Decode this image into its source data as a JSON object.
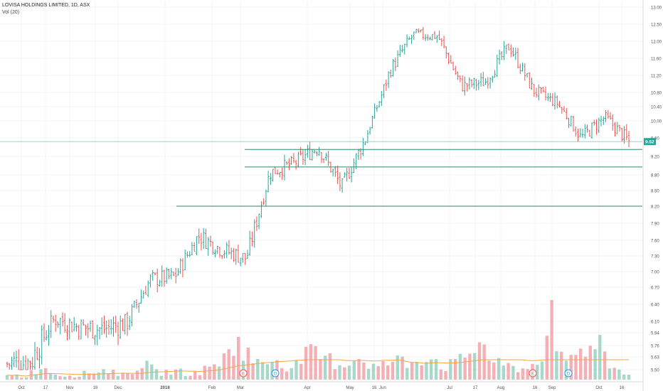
{
  "header": {
    "symbol_line": "LOVISA HOLDINGS LIMITED, 1D, ASX",
    "indicator": "Vol (20)"
  },
  "chart_data": {
    "type": "ohlc",
    "symbol": "LOVISA HOLDINGS LIMITED",
    "interval": "1D",
    "exchange": "ASX",
    "last_price": 9.52,
    "last_price_label": "9.52",
    "y_axis": {
      "ticks": [
        "13.00",
        "12.50",
        "12.00",
        "11.60",
        "11.20",
        "10.80",
        "10.40",
        "10.00",
        "9.60",
        "9.20",
        "8.80",
        "8.50",
        "8.20",
        "7.90",
        "7.60",
        "7.30",
        "7.00",
        "6.70",
        "6.40",
        "6.10",
        "5.94",
        "5.76",
        "5.63",
        "5.50"
      ],
      "ylim": [
        5.3,
        13.1
      ]
    },
    "x_axis": {
      "ticks": [
        "Oct",
        "17",
        "Nov",
        "16",
        "Dec",
        "2018",
        "Feb",
        "Mar",
        "Apr",
        "May",
        "16",
        "Jun",
        "Jul",
        "17",
        "Aug",
        "16",
        "Sep",
        "Oct",
        "16"
      ]
    },
    "horizontal_lines": [
      {
        "price": 9.35,
        "from": "Mar",
        "to": "axis"
      },
      {
        "price": 8.97,
        "from": "Mar",
        "to": "axis"
      },
      {
        "price": 8.2,
        "from": "Jan",
        "to": "axis"
      },
      {
        "price": 9.52,
        "from": "start",
        "to": "axis"
      }
    ],
    "events": [
      {
        "label": "E",
        "date": "Feb"
      },
      {
        "label": "D",
        "date": "Mar"
      },
      {
        "label": "E",
        "date": "Aug 16"
      },
      {
        "label": "D",
        "date": "Sep"
      }
    ],
    "price_series": [
      {
        "date": "Sep",
        "c": 5.56
      },
      {
        "date": "Oct",
        "c": 5.58
      },
      {
        "date": "Oct 17",
        "c": 6.15
      },
      {
        "date": "Nov",
        "c": 6.02
      },
      {
        "date": "Nov 16",
        "c": 5.99
      },
      {
        "date": "Dec",
        "c": 6.08
      },
      {
        "date": "Dec 15",
        "c": 6.85
      },
      {
        "date": "2018",
        "c": 6.9
      },
      {
        "date": "Jan 15",
        "c": 7.68
      },
      {
        "date": "Feb",
        "c": 7.42
      },
      {
        "date": "Feb 15",
        "c": 7.25
      },
      {
        "date": "Mar",
        "c": 8.85
      },
      {
        "date": "Mar 15",
        "c": 9.05
      },
      {
        "date": "Apr",
        "c": 9.4
      },
      {
        "date": "Apr 10",
        "c": 8.55
      },
      {
        "date": "May",
        "c": 9.6
      },
      {
        "date": "May 16",
        "c": 11.3
      },
      {
        "date": "Jun",
        "c": 12.2
      },
      {
        "date": "Jun 15",
        "c": 12.15
      },
      {
        "date": "Jul",
        "c": 10.95
      },
      {
        "date": "Jul 17",
        "c": 11.05
      },
      {
        "date": "Aug",
        "c": 11.9
      },
      {
        "date": "Aug 16",
        "c": 10.85
      },
      {
        "date": "Sep",
        "c": 10.5
      },
      {
        "date": "Sep 15",
        "c": 9.6
      },
      {
        "date": "Oct",
        "c": 10.1
      },
      {
        "date": "Oct 16",
        "c": 9.52
      }
    ],
    "volume": {
      "name": "Vol (20)",
      "series": [
        0.5,
        0.2,
        1.0,
        0.4,
        0.3,
        0.6,
        0.8,
        0.3,
        1.3,
        0.5,
        0.7,
        0.4,
        0.9,
        1.8,
        2.6,
        1.1,
        1.7,
        0.9,
        2.0,
        1.6,
        1.2,
        1.8,
        0.9,
        1.5,
        1.3,
        2.1,
        1.0,
        1.4,
        2.9,
        1.2,
        1.0,
        0.8,
        2.5,
        1.6,
        1.9,
        3.7,
        0.9,
        0.6
      ]
    },
    "colors": {
      "up": "#26a69a",
      "down": "#ef5350",
      "up_vol": "#a8d8c9",
      "down_vol": "#f5b0b5",
      "hline": "#2c8a6a",
      "ma": "#f4a640",
      "label_bg": "#26a69a"
    }
  }
}
